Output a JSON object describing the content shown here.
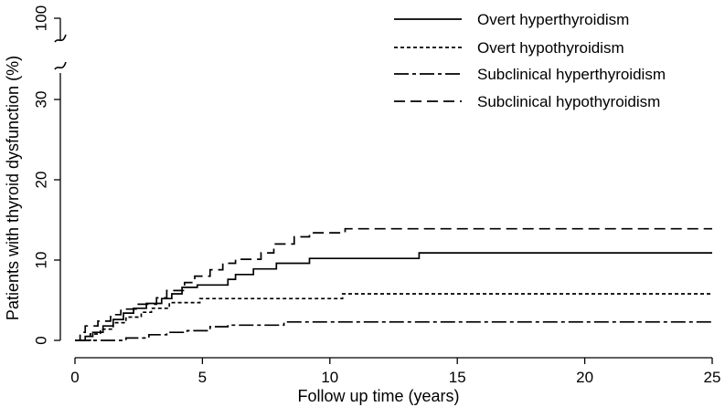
{
  "chart_data": {
    "type": "line",
    "xlabel": "Follow up time (years)",
    "ylabel": "Patients with thyroid dysfunction (%)",
    "xlim": [
      0,
      25
    ],
    "ylim": [
      0,
      30
    ],
    "x_ticks": [
      "0",
      "5",
      "10",
      "15",
      "20",
      "25"
    ],
    "y_ticks": [
      "0",
      "10",
      "20",
      "30",
      "100"
    ],
    "y_axis_break": true,
    "y_break_top_label": "100",
    "grid": false,
    "legend_position": "top-right",
    "series": [
      {
        "name": "Overt hyperthyroidism",
        "style": "solid",
        "points": [
          [
            0,
            0
          ],
          [
            0.4,
            0
          ],
          [
            0.4,
            0.5
          ],
          [
            0.7,
            0.5
          ],
          [
            0.7,
            1.0
          ],
          [
            1.1,
            1.0
          ],
          [
            1.1,
            1.8
          ],
          [
            1.5,
            1.8
          ],
          [
            1.5,
            2.6
          ],
          [
            1.9,
            2.6
          ],
          [
            1.9,
            3.4
          ],
          [
            2.3,
            3.4
          ],
          [
            2.3,
            4.0
          ],
          [
            2.8,
            4.0
          ],
          [
            2.8,
            4.6
          ],
          [
            3.4,
            4.6
          ],
          [
            3.4,
            5.2
          ],
          [
            3.8,
            5.2
          ],
          [
            3.8,
            5.8
          ],
          [
            4.2,
            5.8
          ],
          [
            4.2,
            6.6
          ],
          [
            4.8,
            6.6
          ],
          [
            4.8,
            6.9
          ],
          [
            6.0,
            6.9
          ],
          [
            6.0,
            7.6
          ],
          [
            6.3,
            7.6
          ],
          [
            6.3,
            8.2
          ],
          [
            7.0,
            8.2
          ],
          [
            7.0,
            8.9
          ],
          [
            7.9,
            8.9
          ],
          [
            7.9,
            9.6
          ],
          [
            9.2,
            9.6
          ],
          [
            9.2,
            10.2
          ],
          [
            13.5,
            10.2
          ],
          [
            13.5,
            10.9
          ],
          [
            25,
            10.9
          ]
        ]
      },
      {
        "name": "Overt hypothyroidism",
        "style": "dotted",
        "points": [
          [
            0,
            0
          ],
          [
            0.6,
            0
          ],
          [
            0.6,
            0.8
          ],
          [
            1.0,
            0.8
          ],
          [
            1.0,
            1.4
          ],
          [
            1.5,
            1.4
          ],
          [
            1.5,
            2.2
          ],
          [
            2.0,
            2.2
          ],
          [
            2.0,
            2.9
          ],
          [
            2.6,
            2.9
          ],
          [
            2.6,
            3.5
          ],
          [
            3.0,
            3.5
          ],
          [
            3.0,
            4.0
          ],
          [
            3.7,
            4.0
          ],
          [
            3.7,
            4.7
          ],
          [
            4.9,
            4.7
          ],
          [
            4.9,
            5.2
          ],
          [
            10.5,
            5.2
          ],
          [
            10.5,
            5.8
          ],
          [
            25,
            5.8
          ]
        ]
      },
      {
        "name": "Subclinical hyperthyroidism",
        "style": "dash-dot",
        "points": [
          [
            0,
            0
          ],
          [
            2.0,
            0
          ],
          [
            2.0,
            0.3
          ],
          [
            2.9,
            0.3
          ],
          [
            2.9,
            0.7
          ],
          [
            3.6,
            0.7
          ],
          [
            3.6,
            1.0
          ],
          [
            4.4,
            1.0
          ],
          [
            4.4,
            1.2
          ],
          [
            5.3,
            1.2
          ],
          [
            5.3,
            1.7
          ],
          [
            6.0,
            1.7
          ],
          [
            6.0,
            1.9
          ],
          [
            8.2,
            1.9
          ],
          [
            8.2,
            2.3
          ],
          [
            25,
            2.3
          ]
        ]
      },
      {
        "name": "Subclinical hypothyroidism",
        "style": "dashed",
        "points": [
          [
            0,
            0
          ],
          [
            0.2,
            0
          ],
          [
            0.2,
            1.0
          ],
          [
            0.4,
            1.0
          ],
          [
            0.4,
            1.8
          ],
          [
            0.9,
            1.8
          ],
          [
            0.9,
            2.4
          ],
          [
            1.4,
            2.4
          ],
          [
            1.4,
            3.2
          ],
          [
            1.8,
            3.2
          ],
          [
            1.8,
            3.9
          ],
          [
            2.4,
            3.9
          ],
          [
            2.4,
            4.5
          ],
          [
            3.2,
            4.5
          ],
          [
            3.2,
            5.3
          ],
          [
            3.6,
            5.3
          ],
          [
            3.6,
            6.2
          ],
          [
            4.3,
            6.2
          ],
          [
            4.3,
            7.2
          ],
          [
            4.7,
            7.2
          ],
          [
            4.7,
            8.0
          ],
          [
            5.3,
            8.0
          ],
          [
            5.3,
            8.8
          ],
          [
            5.8,
            8.8
          ],
          [
            5.8,
            9.6
          ],
          [
            6.3,
            9.6
          ],
          [
            6.3,
            10.1
          ],
          [
            7.3,
            10.1
          ],
          [
            7.3,
            10.9
          ],
          [
            7.8,
            10.9
          ],
          [
            7.8,
            12.0
          ],
          [
            8.6,
            12.0
          ],
          [
            8.6,
            12.9
          ],
          [
            9.2,
            12.9
          ],
          [
            9.2,
            13.4
          ],
          [
            10.6,
            13.4
          ],
          [
            10.6,
            13.9
          ],
          [
            25,
            13.9
          ]
        ]
      }
    ]
  }
}
